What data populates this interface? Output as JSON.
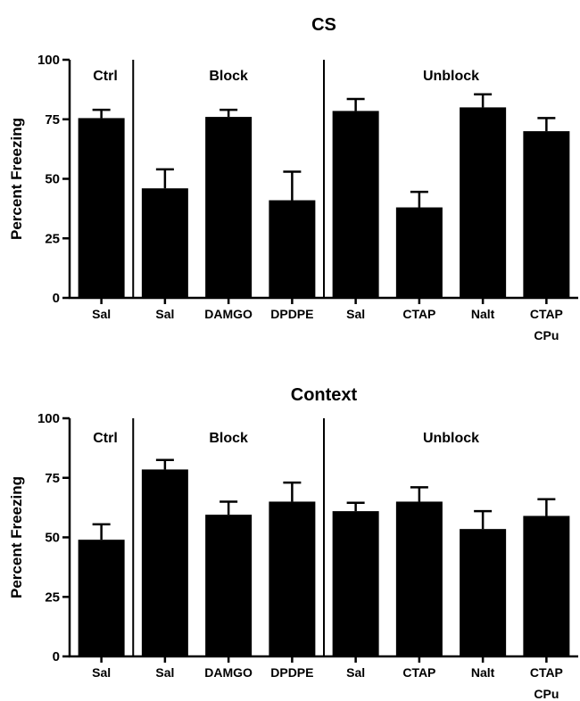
{
  "chart_data": [
    {
      "type": "bar",
      "title": "CS",
      "ylabel": "Percent Freezing",
      "ylim": [
        0,
        100
      ],
      "yticks": [
        0,
        25,
        50,
        75,
        100
      ],
      "categories": [
        "Sal",
        "Sal",
        "DAMGO",
        "DPDPE",
        "Sal",
        "CTAP",
        "Nalt",
        [
          "CTAP",
          "CPu"
        ]
      ],
      "values": [
        75.5,
        46,
        76,
        41,
        78.5,
        38,
        80,
        70
      ],
      "errors": [
        3.5,
        8,
        3,
        12,
        5,
        6.5,
        5.5,
        5.5
      ],
      "groups": [
        {
          "label": "Ctrl",
          "start": 0,
          "end": 0
        },
        {
          "label": "Block",
          "start": 1,
          "end": 3
        },
        {
          "label": "Unblock",
          "start": 4,
          "end": 7
        }
      ],
      "bar_color": "#000000",
      "grid": false
    },
    {
      "type": "bar",
      "title": "Context",
      "ylabel": "Percent Freezing",
      "ylim": [
        0,
        100
      ],
      "yticks": [
        0,
        25,
        50,
        75,
        100
      ],
      "categories": [
        "Sal",
        "Sal",
        "DAMGO",
        "DPDPE",
        "Sal",
        "CTAP",
        "Nalt",
        [
          "CTAP",
          "CPu"
        ]
      ],
      "values": [
        49,
        78.5,
        59.5,
        65,
        61,
        65,
        53.5,
        59
      ],
      "errors": [
        6.5,
        4,
        5.5,
        8,
        3.5,
        6,
        7.5,
        7
      ],
      "groups": [
        {
          "label": "Ctrl",
          "start": 0,
          "end": 0
        },
        {
          "label": "Block",
          "start": 1,
          "end": 3
        },
        {
          "label": "Unblock",
          "start": 4,
          "end": 7
        }
      ],
      "bar_color": "#000000",
      "grid": false
    }
  ]
}
